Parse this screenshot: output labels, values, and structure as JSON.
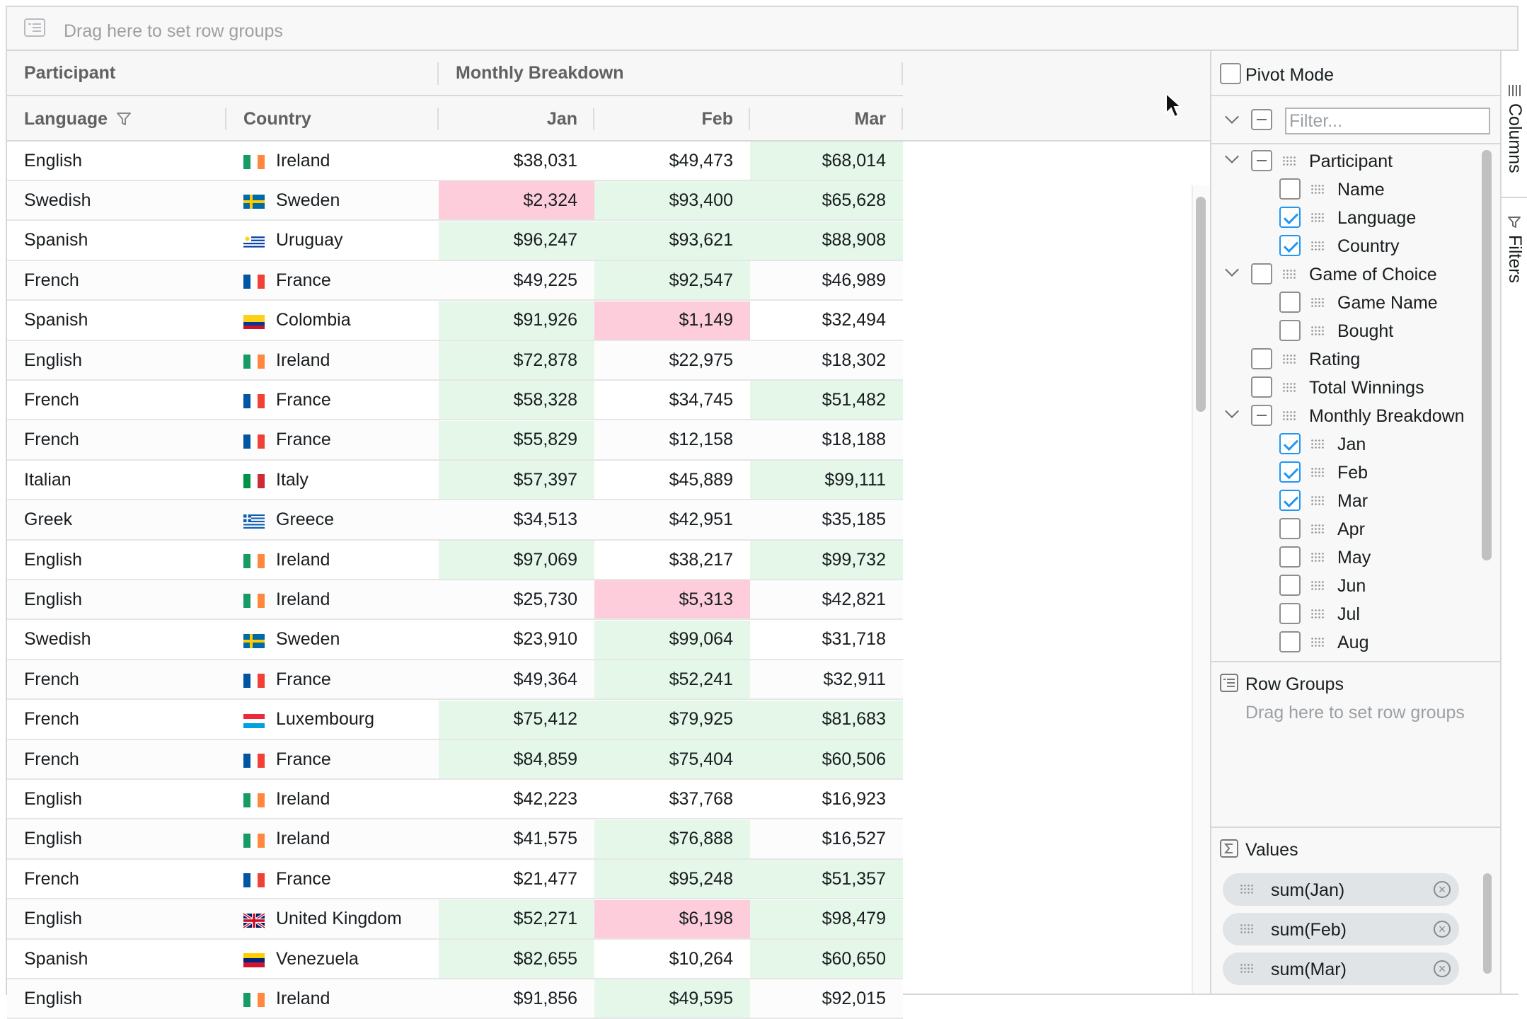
{
  "top_drop_zone": {
    "text": "Drag here to set row groups"
  },
  "header": {
    "groups": [
      {
        "label": "Participant"
      },
      {
        "label": "Monthly Breakdown"
      }
    ],
    "columns": [
      {
        "label": "Language"
      },
      {
        "label": "Country"
      },
      {
        "label": "Jan"
      },
      {
        "label": "Feb"
      },
      {
        "label": "Mar"
      }
    ]
  },
  "colors": {
    "good": "#e4f7e9",
    "bad": "#fdcddc",
    "accent": "#2196f3"
  },
  "rows": [
    {
      "language": "English",
      "country": "Ireland",
      "flag": "ireland",
      "jan": "$38,031",
      "feb": "$49,473",
      "mar": "$68,014",
      "jan_s": "",
      "feb_s": "",
      "mar_s": "good"
    },
    {
      "language": "Swedish",
      "country": "Sweden",
      "flag": "sweden",
      "jan": "$2,324",
      "feb": "$93,400",
      "mar": "$65,628",
      "jan_s": "bad",
      "feb_s": "good",
      "mar_s": "good"
    },
    {
      "language": "Spanish",
      "country": "Uruguay",
      "flag": "uruguay",
      "jan": "$96,247",
      "feb": "$93,621",
      "mar": "$88,908",
      "jan_s": "good",
      "feb_s": "good",
      "mar_s": "good"
    },
    {
      "language": "French",
      "country": "France",
      "flag": "france",
      "jan": "$49,225",
      "feb": "$92,547",
      "mar": "$46,989",
      "jan_s": "",
      "feb_s": "good",
      "mar_s": ""
    },
    {
      "language": "Spanish",
      "country": "Colombia",
      "flag": "colombia",
      "jan": "$91,926",
      "feb": "$1,149",
      "mar": "$32,494",
      "jan_s": "good",
      "feb_s": "bad",
      "mar_s": ""
    },
    {
      "language": "English",
      "country": "Ireland",
      "flag": "ireland",
      "jan": "$72,878",
      "feb": "$22,975",
      "mar": "$18,302",
      "jan_s": "good",
      "feb_s": "",
      "mar_s": ""
    },
    {
      "language": "French",
      "country": "France",
      "flag": "france",
      "jan": "$58,328",
      "feb": "$34,745",
      "mar": "$51,482",
      "jan_s": "good",
      "feb_s": "",
      "mar_s": "good"
    },
    {
      "language": "French",
      "country": "France",
      "flag": "france",
      "jan": "$55,829",
      "feb": "$12,158",
      "mar": "$18,188",
      "jan_s": "good",
      "feb_s": "",
      "mar_s": ""
    },
    {
      "language": "Italian",
      "country": "Italy",
      "flag": "italy",
      "jan": "$57,397",
      "feb": "$45,889",
      "mar": "$99,111",
      "jan_s": "good",
      "feb_s": "",
      "mar_s": "good"
    },
    {
      "language": "Greek",
      "country": "Greece",
      "flag": "greece",
      "jan": "$34,513",
      "feb": "$42,951",
      "mar": "$35,185",
      "jan_s": "",
      "feb_s": "",
      "mar_s": ""
    },
    {
      "language": "English",
      "country": "Ireland",
      "flag": "ireland",
      "jan": "$97,069",
      "feb": "$38,217",
      "mar": "$99,732",
      "jan_s": "good",
      "feb_s": "",
      "mar_s": "good"
    },
    {
      "language": "English",
      "country": "Ireland",
      "flag": "ireland",
      "jan": "$25,730",
      "feb": "$5,313",
      "mar": "$42,821",
      "jan_s": "",
      "feb_s": "bad",
      "mar_s": ""
    },
    {
      "language": "Swedish",
      "country": "Sweden",
      "flag": "sweden",
      "jan": "$23,910",
      "feb": "$99,064",
      "mar": "$31,718",
      "jan_s": "",
      "feb_s": "good",
      "mar_s": ""
    },
    {
      "language": "French",
      "country": "France",
      "flag": "france",
      "jan": "$49,364",
      "feb": "$52,241",
      "mar": "$32,911",
      "jan_s": "",
      "feb_s": "good",
      "mar_s": ""
    },
    {
      "language": "French",
      "country": "Luxembourg",
      "flag": "luxembourg",
      "jan": "$75,412",
      "feb": "$79,925",
      "mar": "$81,683",
      "jan_s": "good",
      "feb_s": "good",
      "mar_s": "good"
    },
    {
      "language": "French",
      "country": "France",
      "flag": "france",
      "jan": "$84,859",
      "feb": "$75,404",
      "mar": "$60,506",
      "jan_s": "good",
      "feb_s": "good",
      "mar_s": "good"
    },
    {
      "language": "English",
      "country": "Ireland",
      "flag": "ireland",
      "jan": "$42,223",
      "feb": "$37,768",
      "mar": "$16,923",
      "jan_s": "",
      "feb_s": "",
      "mar_s": ""
    },
    {
      "language": "English",
      "country": "Ireland",
      "flag": "ireland",
      "jan": "$41,575",
      "feb": "$76,888",
      "mar": "$16,527",
      "jan_s": "",
      "feb_s": "good",
      "mar_s": ""
    },
    {
      "language": "French",
      "country": "France",
      "flag": "france",
      "jan": "$21,477",
      "feb": "$95,248",
      "mar": "$51,357",
      "jan_s": "",
      "feb_s": "good",
      "mar_s": "good"
    },
    {
      "language": "English",
      "country": "United Kingdom",
      "flag": "uk",
      "jan": "$52,271",
      "feb": "$6,198",
      "mar": "$98,479",
      "jan_s": "good",
      "feb_s": "bad",
      "mar_s": "good"
    },
    {
      "language": "Spanish",
      "country": "Venezuela",
      "flag": "venezuela",
      "jan": "$82,655",
      "feb": "$10,264",
      "mar": "$60,650",
      "jan_s": "good",
      "feb_s": "",
      "mar_s": "good"
    },
    {
      "language": "English",
      "country": "Ireland",
      "flag": "ireland",
      "jan": "$91,856",
      "feb": "$49,595",
      "mar": "$92,015",
      "jan_s": "",
      "feb_s": "good",
      "mar_s": ""
    }
  ],
  "tool_panel": {
    "pivot_mode": {
      "label": "Pivot Mode",
      "checked": false
    },
    "filter": {
      "placeholder": "Filter..."
    },
    "columns": [
      {
        "label": "Participant",
        "level": 0,
        "group": true,
        "state": "indeterminate"
      },
      {
        "label": "Name",
        "level": 1,
        "group": false,
        "state": "unchecked"
      },
      {
        "label": "Language",
        "level": 1,
        "group": false,
        "state": "checked"
      },
      {
        "label": "Country",
        "level": 1,
        "group": false,
        "state": "checked"
      },
      {
        "label": "Game of Choice",
        "level": 0,
        "group": true,
        "state": "unchecked"
      },
      {
        "label": "Game Name",
        "level": 1,
        "group": false,
        "state": "unchecked"
      },
      {
        "label": "Bought",
        "level": 1,
        "group": false,
        "state": "unchecked"
      },
      {
        "label": "Rating",
        "level": 0,
        "group": false,
        "state": "unchecked"
      },
      {
        "label": "Total Winnings",
        "level": 0,
        "group": false,
        "state": "unchecked"
      },
      {
        "label": "Monthly Breakdown",
        "level": 0,
        "group": true,
        "state": "indeterminate"
      },
      {
        "label": "Jan",
        "level": 1,
        "group": false,
        "state": "checked"
      },
      {
        "label": "Feb",
        "level": 1,
        "group": false,
        "state": "checked"
      },
      {
        "label": "Mar",
        "level": 1,
        "group": false,
        "state": "checked"
      },
      {
        "label": "Apr",
        "level": 1,
        "group": false,
        "state": "unchecked"
      },
      {
        "label": "May",
        "level": 1,
        "group": false,
        "state": "unchecked"
      },
      {
        "label": "Jun",
        "level": 1,
        "group": false,
        "state": "unchecked"
      },
      {
        "label": "Jul",
        "level": 1,
        "group": false,
        "state": "unchecked"
      },
      {
        "label": "Aug",
        "level": 1,
        "group": false,
        "state": "unchecked"
      }
    ],
    "row_groups": {
      "title": "Row Groups",
      "placeholder": "Drag here to set row groups"
    },
    "values": {
      "title": "Values",
      "items": [
        "sum(Jan)",
        "sum(Feb)",
        "sum(Mar)"
      ]
    }
  },
  "side_tabs": [
    {
      "label": "Columns"
    },
    {
      "label": "Filters"
    }
  ]
}
